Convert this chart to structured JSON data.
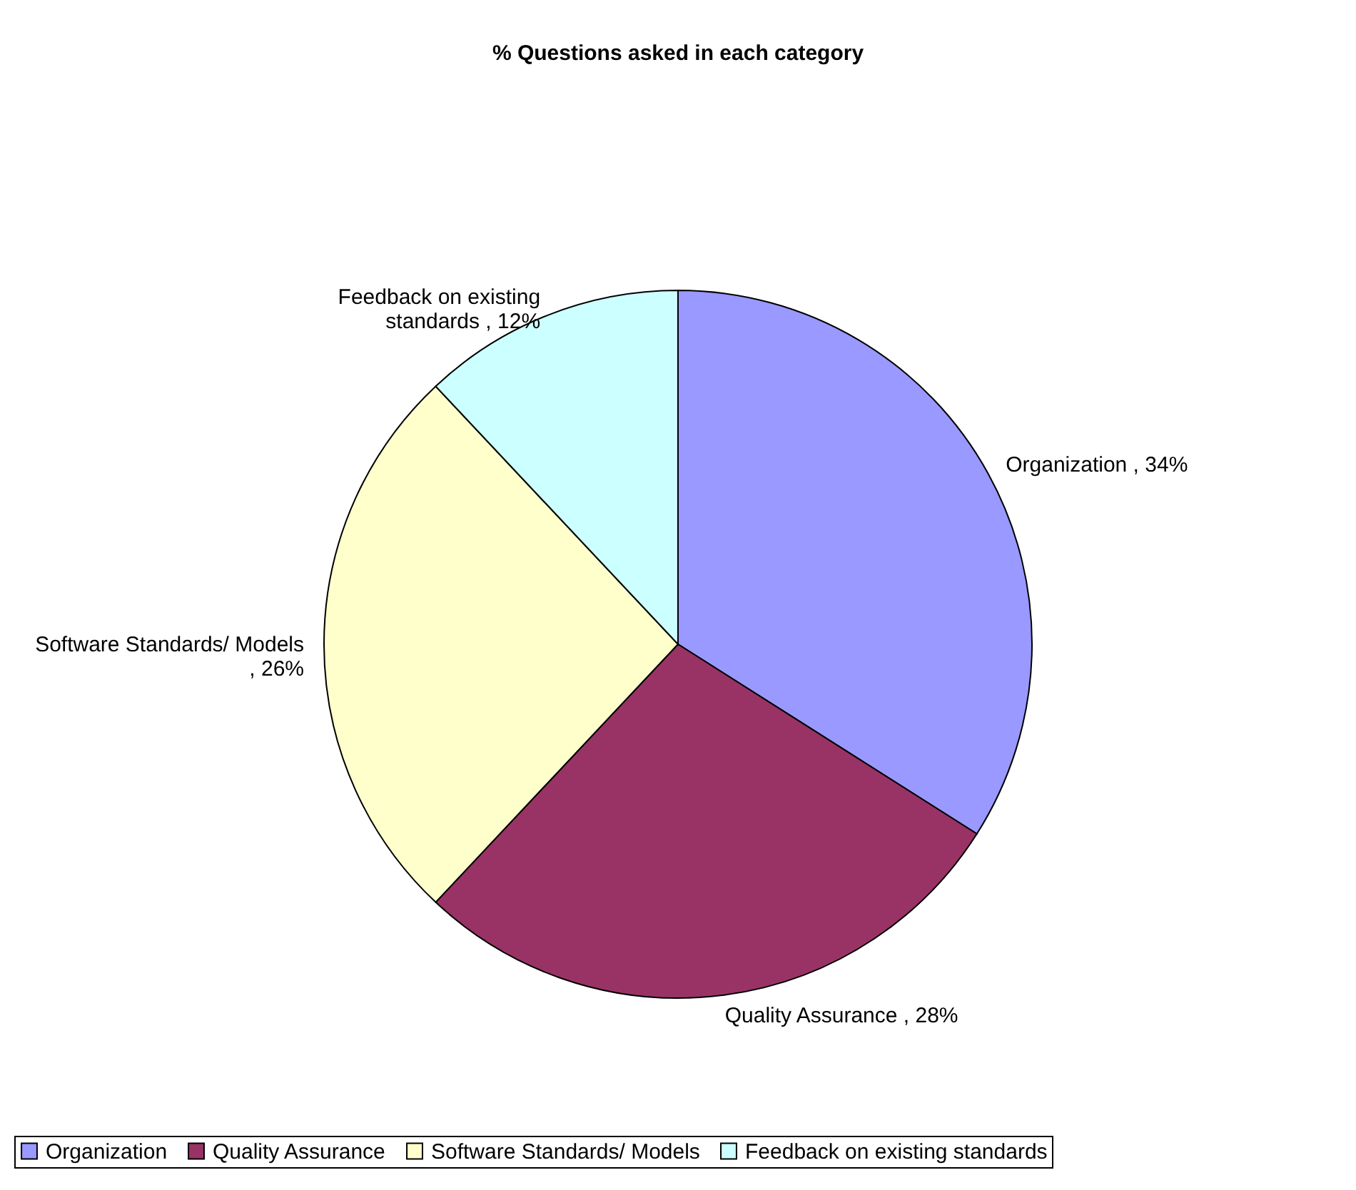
{
  "chart_data": {
    "type": "pie",
    "title": "% Questions asked in each category",
    "categories": [
      "Organization",
      "Quality Assurance",
      "Software Standards/ Models",
      "Feedback on existing standards"
    ],
    "values": [
      34,
      28,
      26,
      12
    ],
    "colors": [
      "#9999ff",
      "#993366",
      "#ffffcc",
      "#ccffff"
    ],
    "value_labels": [
      "Organization , 34%",
      "Quality Assurance , 28%",
      "Software Standards/ Models , 26%",
      "Feedback on existing standards , 12%"
    ],
    "legend": "bottom"
  }
}
